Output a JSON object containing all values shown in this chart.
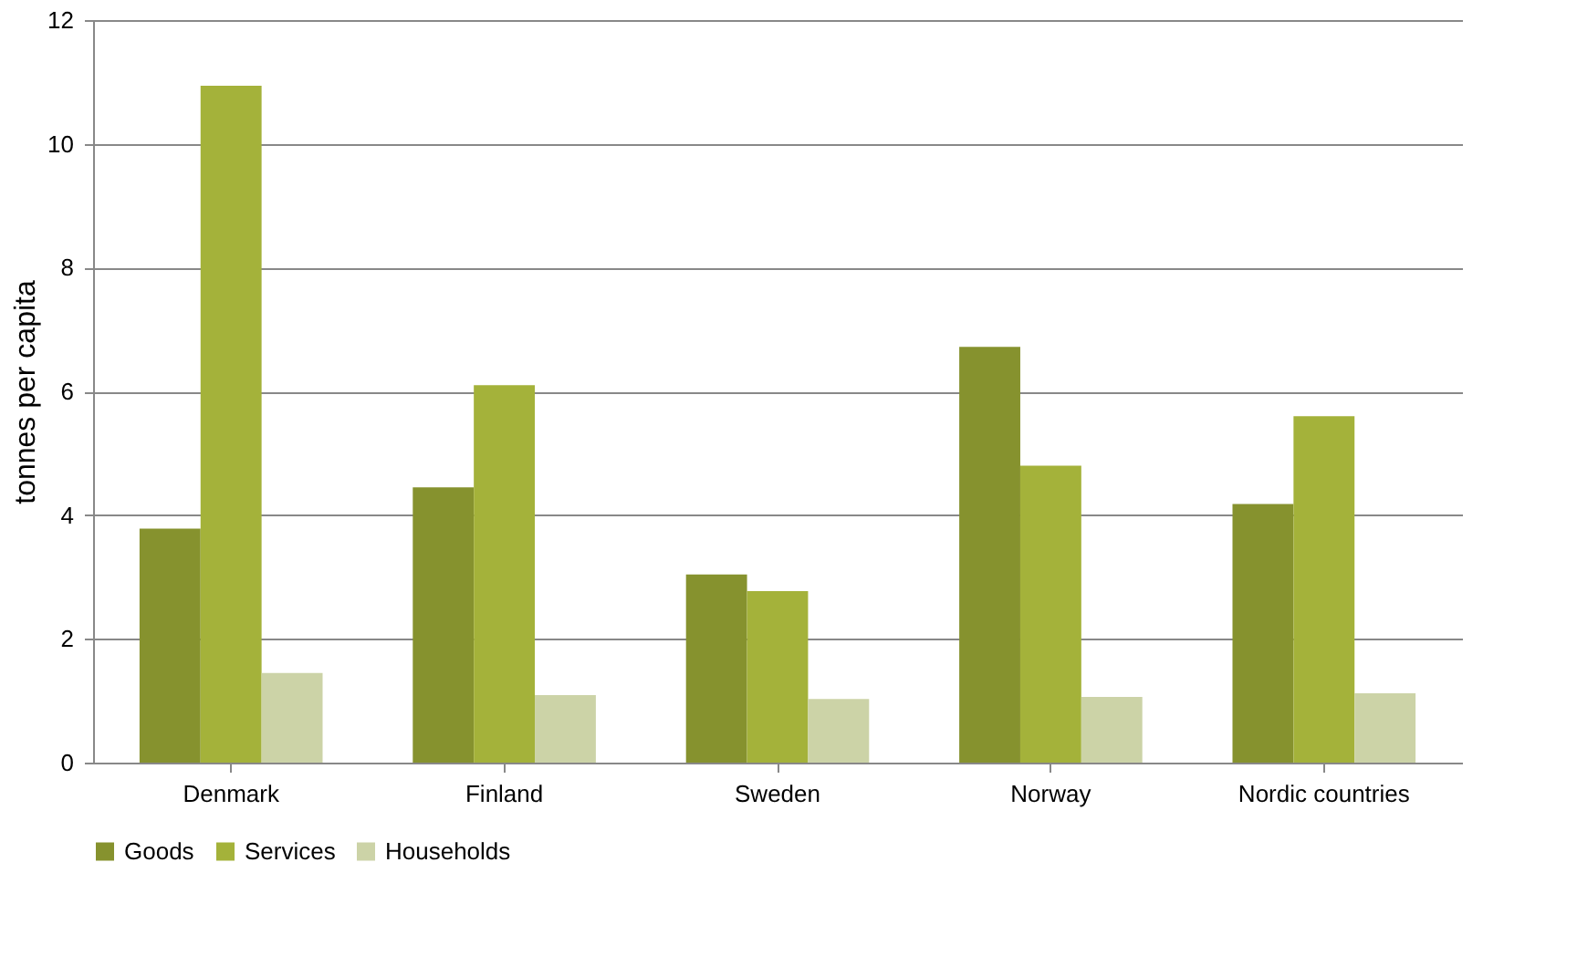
{
  "chart_data": {
    "type": "bar",
    "ylabel": "tonnes per capita",
    "categories": [
      "Denmark",
      "Finland",
      "Sweden",
      "Norway",
      "Nordic countries"
    ],
    "series": [
      {
        "name": "Goods",
        "color": "#86922e",
        "values": [
          3.78,
          4.45,
          3.04,
          6.72,
          4.18
        ]
      },
      {
        "name": "Services",
        "color": "#a4b23a",
        "values": [
          10.94,
          6.1,
          2.77,
          4.8,
          5.6
        ]
      },
      {
        "name": "Households",
        "color": "#ccd3a7",
        "values": [
          1.45,
          1.09,
          1.03,
          1.06,
          1.12
        ]
      }
    ],
    "ylim": [
      0,
      12
    ],
    "yticks": [
      0,
      2,
      4,
      6,
      8,
      10,
      12
    ],
    "grid": "y",
    "legend": "bottom"
  }
}
